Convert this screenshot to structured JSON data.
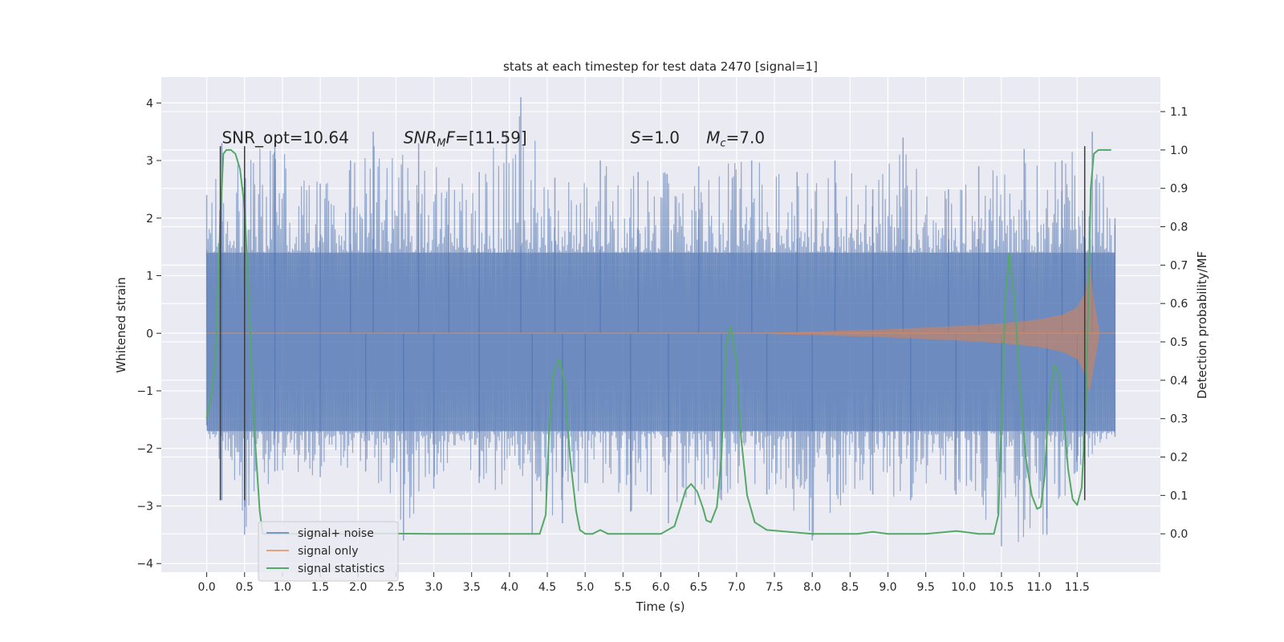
{
  "chart_data": {
    "type": "line",
    "title": "stats at each timestep for test data 2470 [signal=1]",
    "xlabel": "Time (s)",
    "ylabel": "Whitened strain",
    "ylabel_right": "Detection probability/MF",
    "xlim": [
      -0.6,
      12.6
    ],
    "ylim": [
      -4.15,
      4.45
    ],
    "ylim_right": [
      -0.1,
      1.19
    ],
    "x_ticks": [
      0.0,
      0.5,
      1.0,
      1.5,
      2.0,
      2.5,
      3.0,
      3.5,
      4.0,
      4.5,
      5.0,
      5.5,
      6.0,
      6.5,
      7.0,
      7.5,
      8.0,
      8.5,
      9.0,
      9.5,
      10.0,
      10.5,
      11.0,
      11.5
    ],
    "x_tick_labels": [
      "0.0",
      "0.5",
      "1.0",
      "1.5",
      "2.0",
      "2.5",
      "3.0",
      "3.5",
      "4.0",
      "4.5",
      "5.0",
      "5.5",
      "6.0",
      "6.5",
      "7.0",
      "7.5",
      "8.0",
      "8.5",
      "9.0",
      "9.5",
      "10.0",
      "10.5",
      "11.0",
      "11.5"
    ],
    "y_ticks": [
      -4,
      -3,
      -2,
      -1,
      0,
      1,
      2,
      3,
      4
    ],
    "y_tick_labels": [
      "−4",
      "−3",
      "−2",
      "−1",
      "0",
      "1",
      "2",
      "3",
      "4"
    ],
    "y_right_ticks": [
      0.0,
      0.1,
      0.2,
      0.3,
      0.4,
      0.5,
      0.6,
      0.7,
      0.8,
      0.9,
      1.0,
      1.1
    ],
    "y_right_tick_labels": [
      "0.0",
      "0.1",
      "0.2",
      "0.3",
      "0.4",
      "0.5",
      "0.6",
      "0.7",
      "0.8",
      "0.9",
      "1.0",
      "1.1"
    ],
    "grid": true,
    "legend_position": "lower-left",
    "annotations": [
      {
        "x": 0.2,
        "y": 3.3,
        "parts": [
          {
            "t": "SNR_opt=10.64",
            "style": "normal"
          }
        ]
      },
      {
        "x": 2.6,
        "y": 3.3,
        "parts": [
          {
            "t": "SNR",
            "style": "italic"
          },
          {
            "t": "M",
            "style": "italic-sub"
          },
          {
            "t": "F",
            "style": "italic"
          },
          {
            "t": "=[11.59]",
            "style": "normal"
          }
        ]
      },
      {
        "x": 5.6,
        "y": 3.3,
        "parts": [
          {
            "t": "S",
            "style": "italic"
          },
          {
            "t": "=1.0",
            "style": "normal"
          }
        ]
      },
      {
        "x": 6.6,
        "y": 3.3,
        "parts": [
          {
            "t": "M",
            "style": "italic"
          },
          {
            "t": "c",
            "style": "italic-sub"
          },
          {
            "t": "=7.0",
            "style": "normal"
          }
        ]
      }
    ],
    "vlines": [
      {
        "x": 0.18,
        "y0": -2.9,
        "y1": 3.25
      },
      {
        "x": 0.5,
        "y0": -2.9,
        "y1": 3.25
      },
      {
        "x": 11.6,
        "y0": -2.9,
        "y1": 3.25
      }
    ],
    "series": [
      {
        "name": "signal+ noise",
        "color": "#4c72b0",
        "opacity": 0.5,
        "kind": "noise-envelope",
        "x_range": [
          0.0,
          12.0
        ],
        "core_band": [
          -1.7,
          1.4
        ],
        "peaks_upper": [
          [
            0.0,
            2.4
          ],
          [
            0.2,
            3.3
          ],
          [
            0.5,
            3.2
          ],
          [
            0.9,
            3.3
          ],
          [
            1.5,
            2.6
          ],
          [
            1.9,
            3.0
          ],
          [
            2.2,
            3.5
          ],
          [
            2.8,
            3.3
          ],
          [
            3.2,
            2.7
          ],
          [
            3.6,
            2.8
          ],
          [
            4.15,
            4.1
          ],
          [
            4.6,
            2.7
          ],
          [
            5.2,
            3.0
          ],
          [
            5.7,
            2.8
          ],
          [
            6.5,
            2.9
          ],
          [
            7.2,
            3.0
          ],
          [
            7.8,
            2.8
          ],
          [
            8.3,
            3.0
          ],
          [
            8.8,
            2.5
          ],
          [
            9.2,
            3.4
          ],
          [
            9.8,
            2.5
          ],
          [
            10.2,
            2.9
          ],
          [
            10.8,
            3.2
          ],
          [
            11.3,
            3.0
          ],
          [
            11.7,
            3.5
          ],
          [
            12.0,
            2.0
          ]
        ],
        "peaks_lower": [
          [
            0.0,
            -1.6
          ],
          [
            0.2,
            -2.9
          ],
          [
            0.5,
            -3.5
          ],
          [
            0.9,
            -2.4
          ],
          [
            1.5,
            -2.5
          ],
          [
            2.1,
            -2.4
          ],
          [
            2.6,
            -3.6
          ],
          [
            3.0,
            -2.7
          ],
          [
            3.6,
            -2.6
          ],
          [
            4.3,
            -3.5
          ],
          [
            4.7,
            -3.3
          ],
          [
            5.0,
            -2.6
          ],
          [
            5.6,
            -3.1
          ],
          [
            6.1,
            -3.3
          ],
          [
            6.8,
            -2.9
          ],
          [
            7.4,
            -2.8
          ],
          [
            8.0,
            -3.6
          ],
          [
            8.8,
            -2.8
          ],
          [
            9.3,
            -2.9
          ],
          [
            9.9,
            -2.8
          ],
          [
            10.5,
            -3.7
          ],
          [
            11.1,
            -3.5
          ],
          [
            11.5,
            -2.4
          ],
          [
            12.0,
            -1.8
          ]
        ]
      },
      {
        "name": "signal only",
        "color": "#dd8452",
        "opacity": 0.55,
        "kind": "chirp-envelope",
        "x": [
          0.0,
          7.0,
          8.0,
          9.0,
          10.0,
          10.5,
          11.0,
          11.3,
          11.5,
          11.62,
          11.66,
          11.72,
          11.8,
          12.0
        ],
        "upper": [
          0.0,
          0.0,
          0.03,
          0.07,
          0.13,
          0.17,
          0.24,
          0.32,
          0.45,
          0.75,
          1.3,
          0.6,
          0.0,
          0.0
        ],
        "lower": [
          0.0,
          0.0,
          -0.03,
          -0.07,
          -0.13,
          -0.17,
          -0.24,
          -0.32,
          -0.45,
          -0.75,
          -1.05,
          -0.6,
          0.0,
          0.0
        ]
      },
      {
        "name": "signal statistics",
        "color": "#55a868",
        "opacity": 1,
        "kind": "line-right-axis",
        "x": [
          0.0,
          0.06,
          0.12,
          0.18,
          0.22,
          0.26,
          0.32,
          0.38,
          0.44,
          0.5,
          0.56,
          0.62,
          0.7,
          0.74,
          0.8,
          1.2,
          2.0,
          2.2,
          3.0,
          4.0,
          4.4,
          4.48,
          4.52,
          4.58,
          4.66,
          4.73,
          4.8,
          4.88,
          4.93,
          5.0,
          5.1,
          5.2,
          5.3,
          5.5,
          6.0,
          6.18,
          6.26,
          6.33,
          6.4,
          6.48,
          6.56,
          6.6,
          6.66,
          6.74,
          6.8,
          6.86,
          6.92,
          7.0,
          7.06,
          7.14,
          7.24,
          7.4,
          8.0,
          8.6,
          8.8,
          9.0,
          9.5,
          9.9,
          10.0,
          10.2,
          10.4,
          10.46,
          10.5,
          10.55,
          10.6,
          10.67,
          10.75,
          10.82,
          10.9,
          10.97,
          11.02,
          11.07,
          11.12,
          11.2,
          11.26,
          11.32,
          11.38,
          11.44,
          11.5,
          11.56,
          11.62,
          11.68,
          11.72,
          11.78,
          11.86,
          11.95
        ],
        "y": [
          0.3,
          0.36,
          0.47,
          0.82,
          0.99,
          1.0,
          1.0,
          0.99,
          0.95,
          0.85,
          0.6,
          0.3,
          0.06,
          0.0,
          0.0,
          0.0,
          0.0,
          0.001,
          0.0,
          0.0,
          0.0,
          0.05,
          0.25,
          0.42,
          0.455,
          0.39,
          0.2,
          0.06,
          0.01,
          0.0,
          0.0,
          0.01,
          0.0,
          0.0,
          0.0,
          0.02,
          0.07,
          0.115,
          0.13,
          0.11,
          0.065,
          0.035,
          0.03,
          0.07,
          0.2,
          0.49,
          0.54,
          0.45,
          0.25,
          0.1,
          0.03,
          0.01,
          0.0,
          0.0,
          0.005,
          0.0,
          0.0,
          0.007,
          0.005,
          0.0,
          0.0,
          0.05,
          0.3,
          0.6,
          0.73,
          0.62,
          0.37,
          0.2,
          0.1,
          0.065,
          0.07,
          0.15,
          0.32,
          0.44,
          0.42,
          0.31,
          0.17,
          0.09,
          0.075,
          0.12,
          0.35,
          0.9,
          0.99,
          1.0,
          1.0,
          1.0
        ]
      }
    ]
  }
}
